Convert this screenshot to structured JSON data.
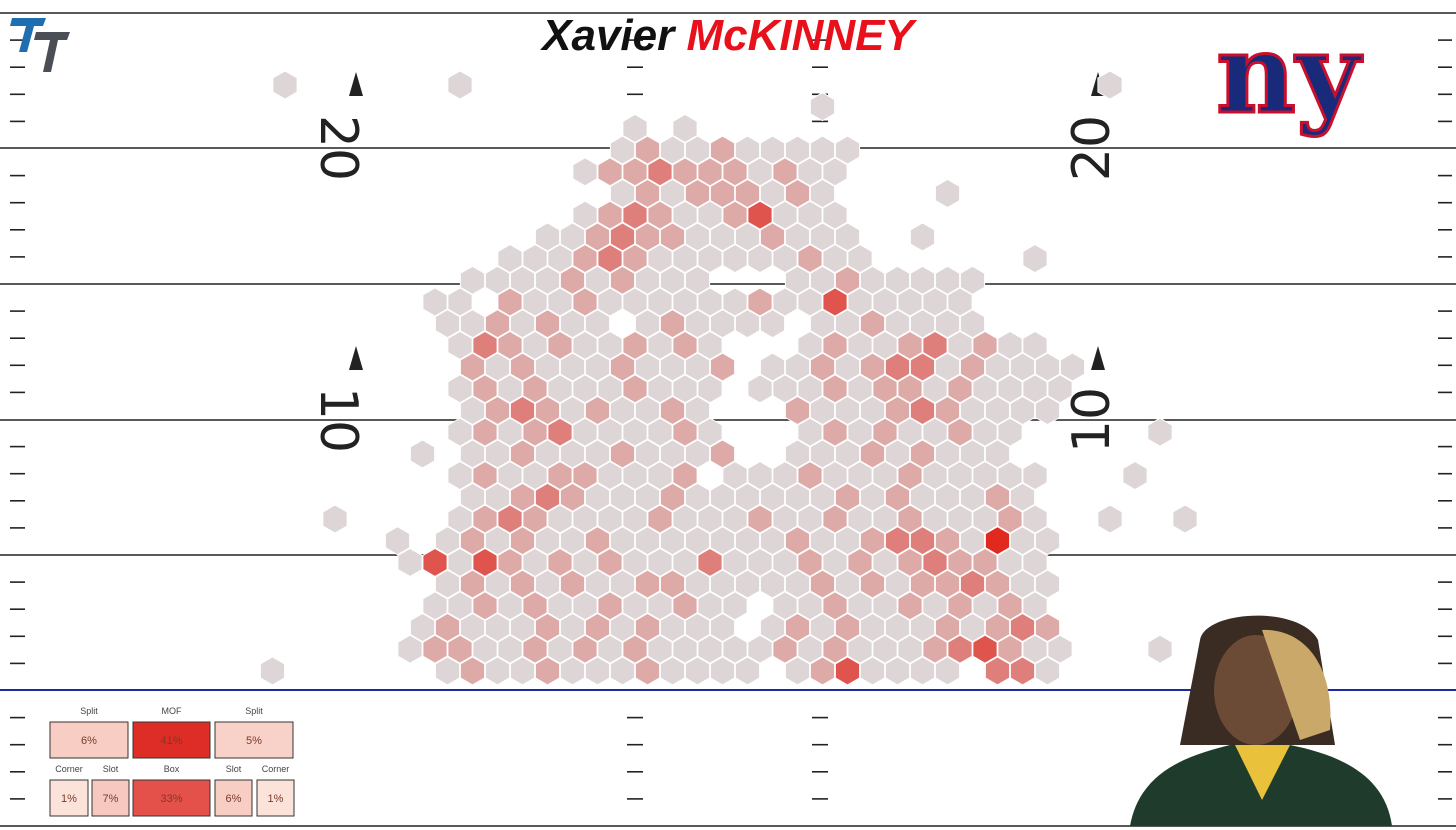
{
  "chart_data": {
    "type": "hexbin",
    "title": {
      "first": "Xavier",
      "last": "McKINNEY"
    },
    "team_logo_text": "ny",
    "yard_numbers": [
      "20",
      "10"
    ],
    "color_low": "#ddd5d6",
    "color_high": "#e0291f",
    "hex_rows": [
      [
        0,
        1,
        0,
        0,
        0,
        0,
        0,
        0,
        1,
        0,
        0,
        0,
        0,
        0,
        0,
        0,
        0,
        0,
        0,
        0,
        0,
        0,
        0,
        0,
        0,
        0,
        0,
        0,
        0,
        0,
        0,
        0,
        0,
        0,
        1,
        0,
        0,
        0
      ],
      [
        0,
        0,
        0,
        0,
        0,
        0,
        0,
        0,
        0,
        0,
        0,
        0,
        0,
        0,
        0,
        0,
        0,
        0,
        0,
        0,
        0,
        0,
        1,
        0,
        0,
        0,
        0,
        0,
        0,
        0,
        0,
        0,
        0,
        0,
        0,
        0,
        0,
        0
      ],
      [
        0,
        0,
        0,
        0,
        0,
        0,
        0,
        0,
        0,
        0,
        0,
        0,
        0,
        0,
        0,
        1,
        0,
        1,
        0,
        0,
        0,
        0,
        0,
        0,
        0,
        0,
        0,
        0,
        0,
        0,
        0,
        0,
        0,
        0,
        0,
        0,
        0,
        0
      ],
      [
        0,
        0,
        0,
        0,
        0,
        0,
        0,
        0,
        0,
        0,
        0,
        0,
        0,
        0,
        1,
        2,
        1,
        1,
        2,
        1,
        1,
        1,
        1,
        1,
        0,
        0,
        0,
        0,
        0,
        0,
        0,
        0,
        0,
        0,
        0,
        0,
        0,
        0
      ],
      [
        0,
        0,
        0,
        0,
        0,
        0,
        0,
        0,
        0,
        0,
        0,
        0,
        0,
        1,
        2,
        2,
        3,
        2,
        2,
        2,
        1,
        2,
        1,
        1,
        0,
        0,
        0,
        0,
        0,
        0,
        0,
        0,
        0,
        0,
        0,
        0,
        0,
        0
      ],
      [
        0,
        0,
        0,
        0,
        0,
        0,
        0,
        0,
        0,
        0,
        0,
        0,
        0,
        0,
        1,
        2,
        1,
        2,
        2,
        2,
        1,
        2,
        1,
        0,
        0,
        0,
        0,
        1,
        0,
        0,
        0,
        0,
        0,
        0,
        0,
        0,
        0,
        0
      ],
      [
        0,
        0,
        0,
        0,
        0,
        0,
        0,
        0,
        0,
        0,
        0,
        0,
        0,
        1,
        2,
        3,
        2,
        1,
        1,
        2,
        4,
        1,
        1,
        1,
        0,
        0,
        0,
        0,
        0,
        0,
        0,
        0,
        0,
        0,
        0,
        0,
        0,
        0
      ],
      [
        0,
        0,
        0,
        0,
        0,
        0,
        0,
        0,
        0,
        0,
        0,
        1,
        1,
        2,
        3,
        2,
        2,
        1,
        1,
        1,
        2,
        1,
        1,
        1,
        0,
        0,
        1,
        0,
        0,
        0,
        0,
        0,
        0,
        0,
        0,
        0,
        0,
        0
      ],
      [
        0,
        0,
        0,
        0,
        0,
        0,
        0,
        0,
        0,
        0,
        1,
        1,
        1,
        2,
        3,
        2,
        1,
        1,
        1,
        1,
        1,
        1,
        2,
        1,
        1,
        0,
        0,
        0,
        0,
        0,
        0,
        1,
        0,
        0,
        0,
        0,
        0,
        0
      ],
      [
        0,
        0,
        0,
        0,
        0,
        0,
        0,
        0,
        1,
        1,
        1,
        1,
        2,
        1,
        2,
        1,
        1,
        1,
        0,
        0,
        0,
        1,
        1,
        2,
        1,
        1,
        1,
        1,
        1,
        0,
        0,
        0,
        0,
        0,
        0,
        0,
        0,
        0
      ],
      [
        0,
        0,
        0,
        0,
        0,
        0,
        0,
        1,
        1,
        0,
        2,
        1,
        1,
        2,
        1,
        1,
        1,
        1,
        1,
        1,
        2,
        1,
        1,
        4,
        1,
        1,
        1,
        1,
        1,
        0,
        0,
        0,
        0,
        0,
        0,
        0,
        0,
        0
      ],
      [
        0,
        0,
        0,
        0,
        0,
        0,
        0,
        1,
        1,
        2,
        1,
        2,
        1,
        1,
        0,
        1,
        2,
        1,
        1,
        1,
        1,
        0,
        1,
        1,
        2,
        1,
        1,
        1,
        1,
        0,
        0,
        0,
        0,
        0,
        0,
        0,
        0,
        0
      ],
      [
        0,
        0,
        0,
        0,
        0,
        0,
        0,
        0,
        1,
        3,
        2,
        1,
        2,
        1,
        1,
        2,
        1,
        2,
        1,
        0,
        0,
        0,
        1,
        2,
        1,
        1,
        2,
        3,
        1,
        2,
        1,
        1,
        0,
        0,
        0,
        0,
        0,
        0
      ],
      [
        0,
        0,
        0,
        0,
        0,
        0,
        0,
        0,
        2,
        1,
        2,
        1,
        1,
        1,
        2,
        1,
        1,
        1,
        2,
        0,
        1,
        1,
        2,
        1,
        2,
        3,
        3,
        1,
        2,
        1,
        1,
        1,
        1,
        0,
        0,
        0,
        0,
        0
      ],
      [
        0,
        0,
        0,
        0,
        0,
        0,
        0,
        0,
        1,
        2,
        1,
        2,
        1,
        1,
        1,
        2,
        1,
        1,
        1,
        0,
        1,
        1,
        1,
        2,
        1,
        2,
        2,
        1,
        2,
        1,
        1,
        1,
        1,
        0,
        0,
        0,
        0,
        0
      ],
      [
        0,
        0,
        0,
        0,
        0,
        0,
        0,
        0,
        1,
        2,
        3,
        2,
        1,
        2,
        1,
        1,
        2,
        1,
        0,
        0,
        0,
        2,
        1,
        1,
        1,
        2,
        3,
        2,
        1,
        1,
        1,
        1,
        0,
        0,
        0,
        0,
        0,
        0
      ],
      [
        0,
        0,
        0,
        0,
        0,
        0,
        0,
        0,
        1,
        2,
        1,
        2,
        3,
        1,
        1,
        1,
        1,
        2,
        1,
        0,
        0,
        0,
        1,
        2,
        1,
        2,
        1,
        1,
        2,
        1,
        1,
        0,
        0,
        0,
        0,
        0,
        1,
        0
      ],
      [
        0,
        0,
        0,
        0,
        0,
        0,
        1,
        0,
        1,
        1,
        2,
        1,
        1,
        1,
        2,
        1,
        1,
        1,
        2,
        0,
        0,
        1,
        1,
        1,
        2,
        1,
        2,
        1,
        1,
        1,
        0,
        0,
        0,
        0,
        0,
        0,
        0,
        0
      ],
      [
        0,
        0,
        0,
        0,
        0,
        0,
        0,
        0,
        1,
        2,
        1,
        1,
        2,
        2,
        1,
        1,
        1,
        2,
        0,
        1,
        1,
        1,
        2,
        1,
        1,
        1,
        2,
        1,
        1,
        1,
        1,
        1,
        0,
        0,
        0,
        1,
        0,
        0
      ],
      [
        0,
        0,
        0,
        0,
        0,
        0,
        0,
        0,
        1,
        1,
        2,
        3,
        2,
        1,
        1,
        1,
        2,
        1,
        1,
        1,
        1,
        1,
        1,
        2,
        1,
        2,
        1,
        1,
        1,
        2,
        1,
        0,
        0,
        0,
        0,
        0,
        0,
        0
      ],
      [
        0,
        0,
        0,
        1,
        0,
        0,
        0,
        0,
        1,
        2,
        3,
        2,
        1,
        1,
        1,
        1,
        2,
        1,
        1,
        1,
        2,
        1,
        1,
        2,
        1,
        1,
        2,
        1,
        1,
        1,
        2,
        1,
        0,
        0,
        1,
        0,
        0,
        1
      ],
      [
        0,
        0,
        0,
        0,
        0,
        1,
        0,
        1,
        2,
        1,
        2,
        1,
        1,
        2,
        1,
        1,
        1,
        1,
        1,
        1,
        1,
        2,
        1,
        1,
        2,
        3,
        3,
        2,
        1,
        5,
        1,
        1,
        0,
        0,
        0,
        0,
        0,
        0
      ],
      [
        0,
        0,
        0,
        0,
        0,
        0,
        1,
        4,
        1,
        4,
        2,
        1,
        2,
        1,
        2,
        1,
        1,
        1,
        3,
        1,
        1,
        1,
        2,
        1,
        2,
        1,
        2,
        3,
        2,
        2,
        1,
        1,
        0,
        0,
        0,
        0,
        0,
        0
      ],
      [
        0,
        0,
        0,
        0,
        0,
        0,
        0,
        1,
        2,
        1,
        2,
        1,
        2,
        1,
        1,
        2,
        2,
        1,
        1,
        1,
        1,
        1,
        2,
        1,
        2,
        1,
        2,
        2,
        3,
        2,
        1,
        1,
        0,
        0,
        0,
        0,
        0,
        0
      ],
      [
        0,
        0,
        0,
        0,
        0,
        0,
        0,
        1,
        1,
        2,
        1,
        2,
        1,
        1,
        2,
        1,
        1,
        2,
        1,
        1,
        0,
        1,
        1,
        2,
        1,
        1,
        2,
        1,
        2,
        1,
        2,
        1,
        0,
        0,
        0,
        0,
        0,
        0
      ],
      [
        0,
        0,
        0,
        0,
        0,
        0,
        1,
        2,
        1,
        1,
        1,
        2,
        1,
        2,
        1,
        2,
        1,
        1,
        1,
        0,
        1,
        2,
        1,
        2,
        1,
        1,
        1,
        2,
        1,
        2,
        3,
        2,
        0,
        0,
        0,
        0,
        0,
        0
      ],
      [
        0,
        0,
        0,
        0,
        0,
        0,
        1,
        2,
        2,
        1,
        1,
        2,
        1,
        2,
        1,
        2,
        1,
        1,
        1,
        1,
        1,
        2,
        1,
        2,
        1,
        1,
        1,
        2,
        3,
        4,
        2,
        1,
        1,
        0,
        0,
        0,
        1,
        0
      ],
      [
        1,
        0,
        0,
        0,
        0,
        0,
        0,
        1,
        2,
        1,
        1,
        2,
        1,
        1,
        1,
        2,
        1,
        1,
        1,
        1,
        0,
        1,
        2,
        4,
        1,
        1,
        1,
        1,
        0,
        3,
        3,
        1,
        0,
        0,
        0,
        0,
        0,
        0
      ]
    ],
    "zones": {
      "rows": [
        [
          {
            "label": "Split",
            "value": 6,
            "value_label": "6%"
          },
          {
            "label": "MOF",
            "value": 41,
            "value_label": "41%"
          },
          {
            "label": "Split",
            "value": 5,
            "value_label": "5%"
          }
        ],
        [
          {
            "label": "Corner",
            "value": 1,
            "value_label": "1%"
          },
          {
            "label": "Slot",
            "value": 7,
            "value_label": "7%"
          },
          {
            "label": "Box",
            "value": 33,
            "value_label": "33%"
          },
          {
            "label": "Slot",
            "value": 6,
            "value_label": "6%"
          },
          {
            "label": "Corner",
            "value": 1,
            "value_label": "1%"
          }
        ]
      ]
    }
  }
}
